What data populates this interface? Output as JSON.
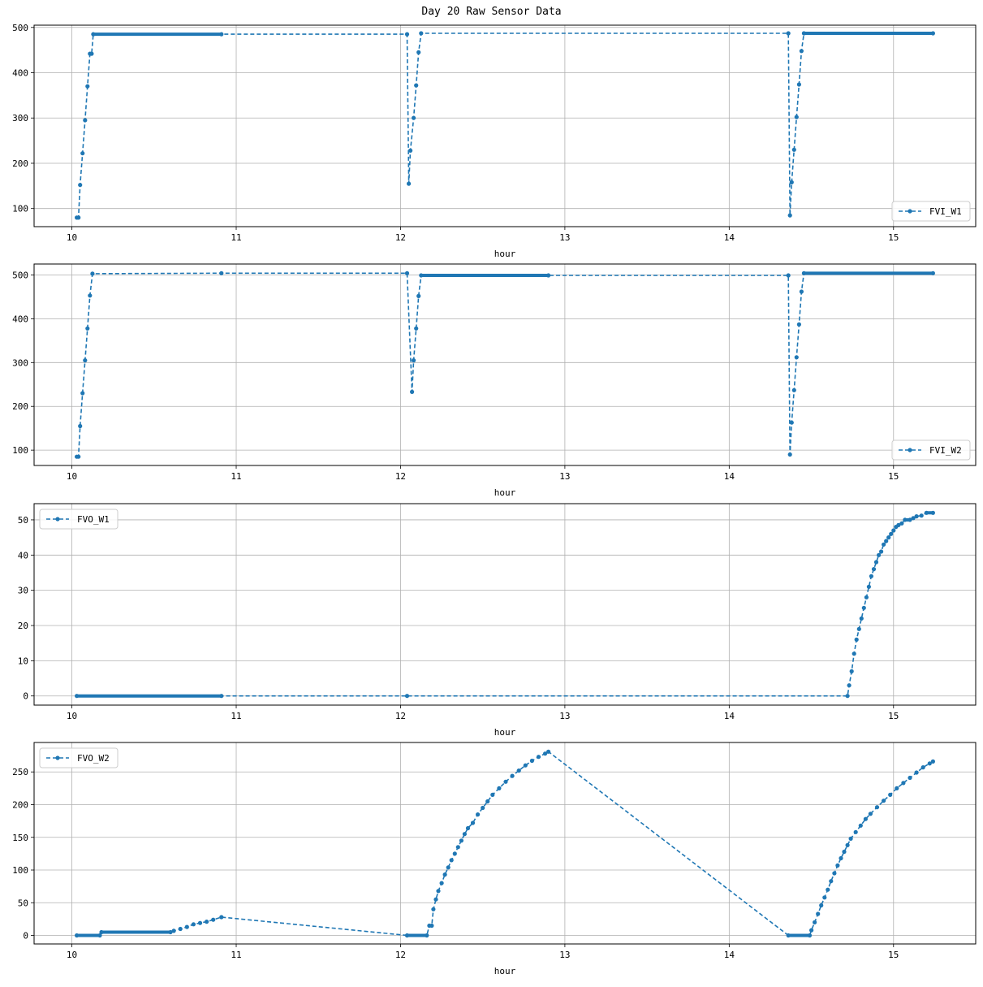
{
  "figure": {
    "title": "Day 20 Raw Sensor Data"
  },
  "colors": {
    "series": "#1f77b4",
    "grid": "#b0b0b0",
    "axis": "#000000",
    "legend_border": "#cccccc"
  },
  "chart_data": [
    {
      "type": "line",
      "xlabel": "hour",
      "ylabel": "",
      "xlim": [
        9.77,
        15.5
      ],
      "ylim": [
        60,
        505
      ],
      "xticks": [
        10,
        11,
        12,
        13,
        14,
        15
      ],
      "yticks": [
        100,
        200,
        300,
        400,
        500
      ],
      "grid": true,
      "legend": "lower-right",
      "line_style": "dashed",
      "marker": "dot",
      "series": [
        {
          "name": "FVI_W1",
          "points": [
            [
              10.03,
              80
            ],
            [
              10.04,
              80
            ],
            [
              10.05,
              152
            ],
            [
              10.065,
              222
            ],
            [
              10.08,
              295
            ],
            [
              10.095,
              370
            ],
            [
              10.11,
              442
            ],
            [
              10.12,
              442
            ],
            [
              10.13,
              485
            ],
            [
              10.91,
              485
            ],
            [
              12.04,
              485
            ],
            [
              12.05,
              155
            ],
            [
              12.06,
              228
            ],
            [
              12.08,
              300
            ],
            [
              12.095,
              372
            ],
            [
              12.11,
              445
            ],
            [
              12.125,
              487
            ],
            [
              14.36,
              487
            ],
            [
              14.37,
              85
            ],
            [
              14.38,
              158
            ],
            [
              14.395,
              230
            ],
            [
              14.41,
              302
            ],
            [
              14.425,
              374
            ],
            [
              14.44,
              448
            ],
            [
              14.455,
              487
            ],
            [
              15.24,
              487
            ]
          ]
        }
      ]
    },
    {
      "type": "line",
      "xlabel": "hour",
      "ylabel": "",
      "xlim": [
        9.77,
        15.5
      ],
      "ylim": [
        65,
        525
      ],
      "xticks": [
        10,
        11,
        12,
        13,
        14,
        15
      ],
      "yticks": [
        100,
        200,
        300,
        400,
        500
      ],
      "grid": true,
      "legend": "lower-right",
      "line_style": "dashed",
      "marker": "dot",
      "series": [
        {
          "name": "FVI_W2",
          "points": [
            [
              10.03,
              85
            ],
            [
              10.04,
              85
            ],
            [
              10.05,
              155
            ],
            [
              10.065,
              230
            ],
            [
              10.08,
              305
            ],
            [
              10.095,
              378
            ],
            [
              10.11,
              453
            ],
            [
              10.125,
              503
            ],
            [
              10.91,
              504
            ],
            [
              12.04,
              504
            ],
            [
              12.07,
              233
            ],
            [
              12.08,
              305
            ],
            [
              12.095,
              378
            ],
            [
              12.11,
              452
            ],
            [
              12.125,
              499
            ],
            [
              12.9,
              499
            ],
            [
              14.36,
              499
            ],
            [
              14.37,
              90
            ],
            [
              14.38,
              163
            ],
            [
              14.395,
              237
            ],
            [
              14.41,
              312
            ],
            [
              14.425,
              387
            ],
            [
              14.44,
              462
            ],
            [
              14.455,
              504
            ],
            [
              15.24,
              504
            ]
          ]
        }
      ]
    },
    {
      "type": "line",
      "xlabel": "hour",
      "ylabel": "",
      "xlim": [
        9.77,
        15.5
      ],
      "ylim": [
        -2.6,
        54.6
      ],
      "xticks": [
        10,
        11,
        12,
        13,
        14,
        15
      ],
      "yticks": [
        0,
        10,
        20,
        30,
        40,
        50
      ],
      "grid": true,
      "legend": "upper-left",
      "line_style": "dashed",
      "marker": "dot",
      "series": [
        {
          "name": "FVO_W1",
          "points": [
            [
              10.03,
              0
            ],
            [
              10.91,
              0
            ],
            [
              12.04,
              0
            ],
            [
              14.72,
              0
            ],
            [
              14.73,
              3
            ],
            [
              14.745,
              7
            ],
            [
              14.76,
              12
            ],
            [
              14.775,
              16
            ],
            [
              14.79,
              19
            ],
            [
              14.805,
              22
            ],
            [
              14.82,
              25
            ],
            [
              14.835,
              28
            ],
            [
              14.85,
              31
            ],
            [
              14.865,
              34
            ],
            [
              14.88,
              36
            ],
            [
              14.895,
              38
            ],
            [
              14.91,
              40
            ],
            [
              14.925,
              41
            ],
            [
              14.94,
              43
            ],
            [
              14.955,
              44
            ],
            [
              14.97,
              45
            ],
            [
              14.985,
              46
            ],
            [
              15.0,
              47
            ],
            [
              15.015,
              48
            ],
            [
              15.03,
              48.5
            ],
            [
              15.05,
              49
            ],
            [
              15.07,
              50
            ],
            [
              15.1,
              50
            ],
            [
              15.12,
              50.5
            ],
            [
              15.14,
              51
            ],
            [
              15.17,
              51.2
            ],
            [
              15.2,
              52
            ],
            [
              15.24,
              52
            ]
          ]
        }
      ]
    },
    {
      "type": "line",
      "xlabel": "hour",
      "ylabel": "",
      "xlim": [
        9.77,
        15.5
      ],
      "ylim": [
        -13,
        295
      ],
      "xticks": [
        10,
        11,
        12,
        13,
        14,
        15
      ],
      "yticks": [
        0,
        50,
        100,
        150,
        200,
        250
      ],
      "grid": true,
      "legend": "upper-left",
      "line_style": "dashed",
      "marker": "dot",
      "series": [
        {
          "name": "FVO_W2",
          "points": [
            [
              10.03,
              0
            ],
            [
              10.17,
              0
            ],
            [
              10.18,
              5
            ],
            [
              10.6,
              5
            ],
            [
              10.62,
              7
            ],
            [
              10.66,
              10
            ],
            [
              10.7,
              13
            ],
            [
              10.74,
              17
            ],
            [
              10.78,
              19
            ],
            [
              10.82,
              21
            ],
            [
              10.86,
              24
            ],
            [
              10.91,
              28
            ],
            [
              12.04,
              0
            ],
            [
              12.16,
              0
            ],
            [
              12.175,
              15
            ],
            [
              12.19,
              15
            ],
            [
              12.2,
              40
            ],
            [
              12.215,
              55
            ],
            [
              12.23,
              68
            ],
            [
              12.25,
              80
            ],
            [
              12.27,
              93
            ],
            [
              12.29,
              104
            ],
            [
              12.31,
              115
            ],
            [
              12.33,
              125
            ],
            [
              12.35,
              135
            ],
            [
              12.37,
              145
            ],
            [
              12.39,
              155
            ],
            [
              12.41,
              164
            ],
            [
              12.44,
              172
            ],
            [
              12.47,
              185
            ],
            [
              12.5,
              195
            ],
            [
              12.53,
              205
            ],
            [
              12.56,
              215
            ],
            [
              12.6,
              225
            ],
            [
              12.64,
              235
            ],
            [
              12.68,
              244
            ],
            [
              12.72,
              252
            ],
            [
              12.76,
              260
            ],
            [
              12.8,
              267
            ],
            [
              12.84,
              273
            ],
            [
              12.88,
              278
            ],
            [
              12.9,
              281
            ],
            [
              14.36,
              0
            ],
            [
              14.49,
              0
            ],
            [
              14.5,
              8
            ],
            [
              14.52,
              20
            ],
            [
              14.54,
              33
            ],
            [
              14.56,
              46
            ],
            [
              14.58,
              58
            ],
            [
              14.6,
              70
            ],
            [
              14.62,
              83
            ],
            [
              14.64,
              95
            ],
            [
              14.66,
              107
            ],
            [
              14.68,
              118
            ],
            [
              14.7,
              128
            ],
            [
              14.72,
              138
            ],
            [
              14.74,
              148
            ],
            [
              14.77,
              158
            ],
            [
              14.8,
              168
            ],
            [
              14.83,
              178
            ],
            [
              14.86,
              186
            ],
            [
              14.9,
              196
            ],
            [
              14.94,
              206
            ],
            [
              14.98,
              215
            ],
            [
              15.02,
              225
            ],
            [
              15.06,
              233
            ],
            [
              15.1,
              241
            ],
            [
              15.14,
              249
            ],
            [
              15.18,
              257
            ],
            [
              15.22,
              263
            ],
            [
              15.24,
              266
            ]
          ]
        }
      ]
    }
  ]
}
